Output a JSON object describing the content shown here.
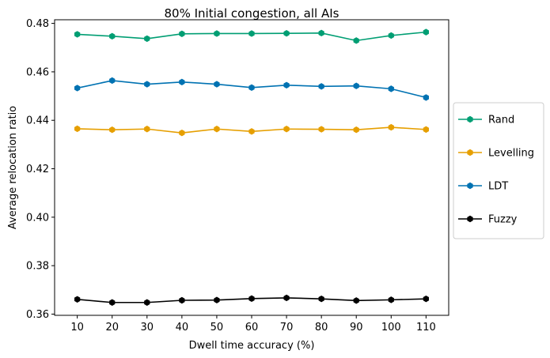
{
  "chart_data": {
    "type": "line",
    "title": "80% Initial congestion, all AIs",
    "xlabel": "Dwell time accuracy (%)",
    "ylabel": "Average relocation ratio",
    "x": [
      10,
      20,
      30,
      40,
      50,
      60,
      70,
      80,
      90,
      100,
      110
    ],
    "xticks": [
      "10",
      "20",
      "30",
      "40",
      "50",
      "60",
      "70",
      "80",
      "90",
      "100",
      "110"
    ],
    "yticks": [
      "0.36",
      "0.38",
      "0.40",
      "0.42",
      "0.44",
      "0.46",
      "0.48"
    ],
    "ylim": [
      0.3595,
      0.4815
    ],
    "xlim": [
      3.5,
      116.5
    ],
    "grid": false,
    "legend_position": "center-right, outside plot",
    "series": [
      {
        "name": "Rand",
        "color": "#009e73",
        "marker": "hexagon",
        "values": [
          0.4755,
          0.4747,
          0.4737,
          0.4757,
          0.4758,
          0.4758,
          0.4759,
          0.476,
          0.4729,
          0.475,
          0.4764
        ]
      },
      {
        "name": "Levelling",
        "color": "#e69f00",
        "marker": "hexagon",
        "values": [
          0.4365,
          0.4361,
          0.4364,
          0.4348,
          0.4364,
          0.4354,
          0.4364,
          0.4363,
          0.4361,
          0.4371,
          0.4362
        ]
      },
      {
        "name": "LDT",
        "color": "#0072b2",
        "marker": "hexagon",
        "values": [
          0.4533,
          0.4564,
          0.4549,
          0.4558,
          0.4549,
          0.4535,
          0.4545,
          0.454,
          0.4542,
          0.453,
          0.4494
        ]
      },
      {
        "name": "Fuzzy",
        "color": "#000000",
        "marker": "hexagon",
        "values": [
          0.3661,
          0.3648,
          0.3648,
          0.3657,
          0.3658,
          0.3664,
          0.3667,
          0.3663,
          0.3656,
          0.3659,
          0.3663
        ]
      }
    ]
  }
}
